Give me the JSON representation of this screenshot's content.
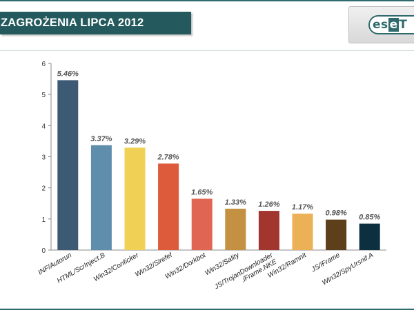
{
  "header": {
    "title": "ZAGROŻENIA LIPCA 2012",
    "logo": {
      "left": "es",
      "mid": "e",
      "right": "T"
    }
  },
  "chart_data": {
    "type": "bar",
    "title": "ZAGROŻENIA LIPCA 2012",
    "xlabel": "",
    "ylabel": "",
    "ylim": [
      0,
      6
    ],
    "yticks": [
      0,
      1,
      2,
      3,
      4,
      5,
      6
    ],
    "grid": false,
    "categories": [
      "INF/Autorun",
      "HTML/ScrInject.B",
      "Win32/Conficker",
      "Win32/Sirefef",
      "Win32/Dorkbot",
      "Win32/Sality",
      [
        "JS/TrojanDownloader",
        ".iFrame.NKE"
      ],
      "Win32/Ramnit",
      "JS/iFrame",
      "Win32/SpyUrsnif.A"
    ],
    "values": [
      5.46,
      3.37,
      3.29,
      2.78,
      1.65,
      1.33,
      1.26,
      1.17,
      0.98,
      0.85
    ],
    "value_labels": [
      "5.46%",
      "3.37%",
      "3.29%",
      "2.78%",
      "1.65%",
      "1.33%",
      "1.26%",
      "1.17%",
      "0.98%",
      "0.85%"
    ],
    "colors": [
      "#3d5a74",
      "#5e8eac",
      "#f0d055",
      "#dd5a3b",
      "#e06552",
      "#c39141",
      "#a2352e",
      "#ecb056",
      "#5e3f1c",
      "#0d3040"
    ]
  }
}
